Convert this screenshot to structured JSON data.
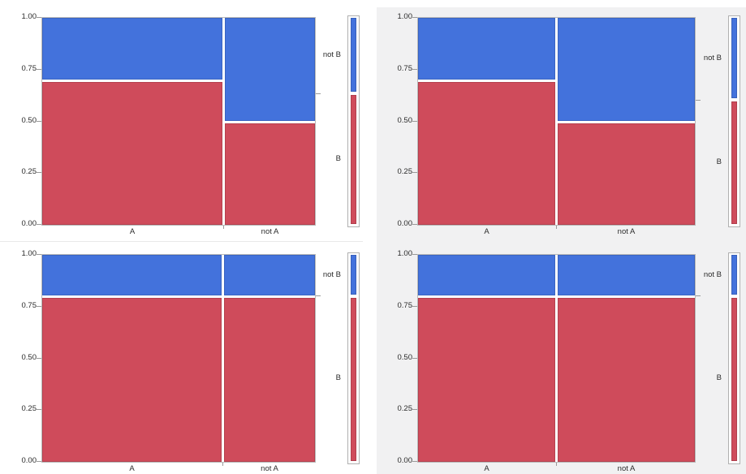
{
  "chart_data": {
    "type": "heatmap",
    "subtype": "mosaic-grid",
    "description": "2x2 grid of mosaic plots of B vs A",
    "x_categories": [
      "A",
      "not A"
    ],
    "legend_entries": [
      "not B",
      "B"
    ],
    "y_tick_labels": [
      "1.00",
      "0.75",
      "0.50",
      "0.25",
      "0.00"
    ],
    "y_tick_values": [
      1.0,
      0.75,
      0.5,
      0.25,
      0.0
    ],
    "ylim": [
      0,
      1
    ],
    "legend_position": "right",
    "grid": false,
    "panels": [
      {
        "position": "top-left",
        "x_categories": [
          "A",
          "not A"
        ],
        "column_widths": [
          0.667,
          0.333
        ],
        "p_B_given_col": [
          0.7,
          0.5
        ],
        "p_notB_given_col": [
          0.3,
          0.5
        ],
        "marginal_B": 0.633
      },
      {
        "position": "top-right",
        "x_categories": [
          "A",
          "not A"
        ],
        "column_widths": [
          0.5,
          0.5
        ],
        "p_B_given_col": [
          0.7,
          0.5
        ],
        "p_notB_given_col": [
          0.3,
          0.5
        ],
        "marginal_B": 0.6
      },
      {
        "position": "bottom-left",
        "x_categories": [
          "A",
          "not A"
        ],
        "column_widths": [
          0.665,
          0.335
        ],
        "p_B_given_col": [
          0.8,
          0.8
        ],
        "p_notB_given_col": [
          0.2,
          0.2
        ],
        "marginal_B": 0.8
      },
      {
        "position": "bottom-right",
        "x_categories": [
          "A",
          "not A"
        ],
        "column_widths": [
          0.5,
          0.5
        ],
        "p_B_given_col": [
          0.8,
          0.8
        ],
        "p_notB_given_col": [
          0.2,
          0.2
        ],
        "marginal_B": 0.8
      }
    ],
    "colors": {
      "B_fill": "#cf4b5b",
      "notB_fill": "#4372dc",
      "frame_border": "#b9b9b9",
      "legend_frame_border": "#b0b0b0",
      "tick_color": "#9a9a9a",
      "text_color": "#2b2b2b",
      "right_panel_background": "#f1f1f2",
      "left_panel_background": "#ffffff"
    }
  }
}
